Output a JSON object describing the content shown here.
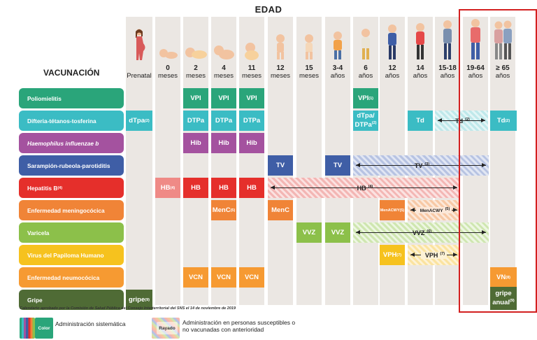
{
  "header": {
    "edad": "EDAD",
    "vacunacion": "VACUNACIÓN"
  },
  "columns": [
    {
      "id": "prenatal",
      "line1": "Prenatal",
      "line2": ""
    },
    {
      "id": "m0",
      "line1": "0",
      "line2": "meses"
    },
    {
      "id": "m2",
      "line1": "2",
      "line2": "meses"
    },
    {
      "id": "m4",
      "line1": "4",
      "line2": "meses"
    },
    {
      "id": "m11",
      "line1": "11",
      "line2": "meses"
    },
    {
      "id": "m12",
      "line1": "12",
      "line2": "meses"
    },
    {
      "id": "m15",
      "line1": "15",
      "line2": "meses"
    },
    {
      "id": "a34",
      "line1": "3-4",
      "line2": "años"
    },
    {
      "id": "a6",
      "line1": "6",
      "line2": "años"
    },
    {
      "id": "a12",
      "line1": "12",
      "line2": "años"
    },
    {
      "id": "a14",
      "line1": "14",
      "line2": "años"
    },
    {
      "id": "a1518",
      "line1": "15-18",
      "line2": "años"
    },
    {
      "id": "a1964",
      "line1": "19-64",
      "line2": "años"
    },
    {
      "id": "a65",
      "line1": "≥ 65",
      "line2": "años"
    }
  ],
  "rows": [
    {
      "label": "Poliomielitis",
      "color": "#2aa57a"
    },
    {
      "label": "Difteria-tétanos-tosferina",
      "color": "#3bbcc4"
    },
    {
      "label": "Haemophilus influenzae b",
      "color": "#a4529f"
    },
    {
      "label": "Sarampión-rubeola-parotiditis",
      "color": "#3f5ea6"
    },
    {
      "label": "Hepatitis B",
      "sup": "(4)",
      "color": "#e52f2b"
    },
    {
      "label": "Enfermedad meningocócica",
      "color": "#f08437"
    },
    {
      "label": "Varicela",
      "color": "#8cc04a"
    },
    {
      "label": "Virus del Papiloma Humano",
      "color": "#f6c21e"
    },
    {
      "label": "Enfermedad neumocócica",
      "color": "#f69a32"
    },
    {
      "label": "Gripe",
      "color": "#4f6b35"
    }
  ],
  "cells": {
    "vpi": "VPI",
    "vpi6": "VPI",
    "vpi6_sup": "(1)",
    "dtpa_pre": "dTpa",
    "dtpa_pre_sup": "(2)",
    "dtpa": "DTPa",
    "dtpa6_1": "dTpa/",
    "dtpa6_2": "DTPa",
    "dtpa6_sup": "(2)",
    "td14": "Td",
    "td_span": "Td",
    "td_span_sup": "(2)",
    "td65": "Td",
    "td65_sup": "(2)",
    "hib": "Hib",
    "tv": "TV",
    "tv_span": "TV",
    "tv_span_sup": "(3)",
    "hb0": "HB",
    "hb0_sup": "(4)",
    "hb": "HB",
    "hb_span": "HB",
    "hb_span_sup": "(4)",
    "menc4": "MenC",
    "menc4_sup": "(5)",
    "menc12": "MenC",
    "menacwy12": "MenACWY",
    "menacwy12_sup": "(5)",
    "menacwy_span": "MenACWY",
    "menacwy_span_sup": "(5)",
    "vvz": "VVZ",
    "vvz_span": "VVZ",
    "vvz_span_sup": "(6)",
    "vph12": "VPH",
    "vph12_sup": "(7)",
    "vph_span": "VPH",
    "vph_span_sup": "(7)",
    "vcn": "VCN",
    "vn65": "VN",
    "vn65_sup": "(8)",
    "gripe_pre": "gripe",
    "gripe_pre_sup": "(9)",
    "gripe65_1": "gripe",
    "gripe65_2": "anual",
    "gripe65_sup": "(9)"
  },
  "note": "Calendario aprobado por la Comisión de Salud Pública del Consejo Interterritorial del SNS el 14 de noviembre de 2019",
  "legend": {
    "color_tag": "Color",
    "color_text": "Administración sistemática",
    "rayado_tag": "Rayado",
    "rayado_text_1": "Administración en personas susceptibles o",
    "rayado_text_2": "no vacunadas con anterioridad"
  }
}
